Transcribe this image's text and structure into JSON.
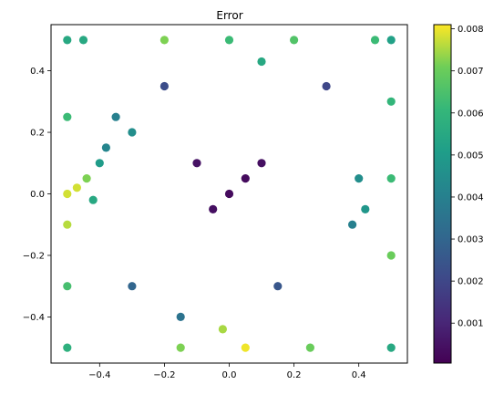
{
  "chart_data": {
    "type": "scatter",
    "title": "Error",
    "xlabel": "",
    "ylabel": "",
    "xlim": [
      -0.55,
      0.55
    ],
    "ylim": [
      -0.55,
      0.55
    ],
    "x_ticks": [
      -0.4,
      -0.2,
      0.0,
      0.2,
      0.4
    ],
    "x_tick_labels": [
      "−0.4",
      "−0.2",
      "0.0",
      "0.2",
      "0.4"
    ],
    "y_ticks": [
      -0.4,
      -0.2,
      0.0,
      0.2,
      0.4
    ],
    "y_tick_labels": [
      "−0.4",
      "−0.2",
      "0.0",
      "0.2",
      "0.4"
    ],
    "grid": false,
    "colormap": "viridis",
    "color_range": [
      5e-05,
      0.0081
    ],
    "colorbar_ticks": [
      0.001,
      0.002,
      0.003,
      0.004,
      0.005,
      0.006,
      0.007,
      0.008
    ],
    "colorbar_tick_labels": [
      "0.001",
      "0.002",
      "0.003",
      "0.004",
      "0.005",
      "0.006",
      "0.007",
      "0.008"
    ],
    "series": [
      {
        "points": [
          {
            "x": -0.5,
            "y": 0.5,
            "v": 0.0055
          },
          {
            "x": -0.45,
            "y": 0.5,
            "v": 0.0055
          },
          {
            "x": -0.2,
            "y": 0.5,
            "v": 0.0072
          },
          {
            "x": 0.0,
            "y": 0.5,
            "v": 0.0062
          },
          {
            "x": 0.2,
            "y": 0.5,
            "v": 0.0066
          },
          {
            "x": 0.45,
            "y": 0.5,
            "v": 0.0062
          },
          {
            "x": 0.5,
            "y": 0.5,
            "v": 0.0052
          },
          {
            "x": -0.5,
            "y": 0.25,
            "v": 0.0062
          },
          {
            "x": -0.5,
            "y": 0.0,
            "v": 0.0078
          },
          {
            "x": -0.5,
            "y": -0.1,
            "v": 0.0076
          },
          {
            "x": -0.5,
            "y": -0.3,
            "v": 0.0064
          },
          {
            "x": -0.5,
            "y": -0.5,
            "v": 0.0058
          },
          {
            "x": -0.15,
            "y": -0.5,
            "v": 0.0072
          },
          {
            "x": 0.05,
            "y": -0.5,
            "v": 0.008
          },
          {
            "x": 0.25,
            "y": -0.5,
            "v": 0.007
          },
          {
            "x": 0.5,
            "y": -0.5,
            "v": 0.0055
          },
          {
            "x": 0.5,
            "y": -0.2,
            "v": 0.007
          },
          {
            "x": 0.5,
            "y": 0.05,
            "v": 0.0062
          },
          {
            "x": 0.5,
            "y": 0.3,
            "v": 0.006
          },
          {
            "x": -0.47,
            "y": 0.02,
            "v": 0.0078
          },
          {
            "x": -0.44,
            "y": 0.05,
            "v": 0.0072
          },
          {
            "x": -0.42,
            "y": -0.02,
            "v": 0.0055
          },
          {
            "x": -0.4,
            "y": 0.1,
            "v": 0.005
          },
          {
            "x": -0.38,
            "y": 0.15,
            "v": 0.0042
          },
          {
            "x": -0.35,
            "y": 0.25,
            "v": 0.004
          },
          {
            "x": -0.3,
            "y": 0.2,
            "v": 0.0045
          },
          {
            "x": -0.02,
            "y": -0.44,
            "v": 0.0075
          },
          {
            "x": 0.1,
            "y": 0.43,
            "v": 0.0055
          },
          {
            "x": 0.4,
            "y": 0.05,
            "v": 0.0045
          },
          {
            "x": 0.42,
            "y": -0.05,
            "v": 0.0048
          },
          {
            "x": 0.38,
            "y": -0.1,
            "v": 0.004
          },
          {
            "x": -0.3,
            "y": -0.3,
            "v": 0.003
          },
          {
            "x": -0.15,
            "y": -0.4,
            "v": 0.0035
          },
          {
            "x": 0.15,
            "y": -0.3,
            "v": 0.0025
          },
          {
            "x": 0.3,
            "y": 0.35,
            "v": 0.002
          },
          {
            "x": -0.2,
            "y": 0.35,
            "v": 0.0022
          },
          {
            "x": 0.0,
            "y": 0.0,
            "v": 0.0003
          },
          {
            "x": 0.05,
            "y": 0.05,
            "v": 0.0003
          },
          {
            "x": -0.05,
            "y": -0.05,
            "v": 0.0004
          },
          {
            "x": 0.1,
            "y": 0.1,
            "v": 0.0004
          },
          {
            "x": -0.1,
            "y": 0.1,
            "v": 0.0005
          }
        ]
      }
    ]
  }
}
